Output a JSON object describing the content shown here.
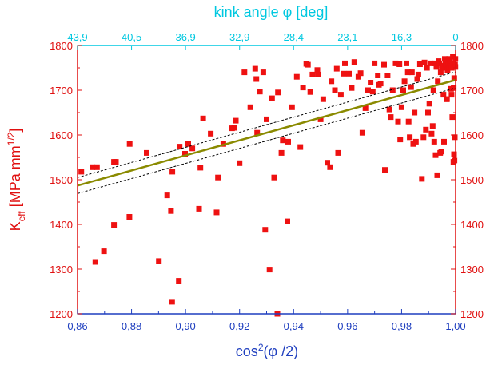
{
  "chart_data": {
    "type": "scatter",
    "title": "",
    "xlabel": {
      "base": "cos",
      "sup": "2",
      "rest": "(φ /2)"
    },
    "ylabel": {
      "base": "K",
      "sub": "eff",
      "mid": " [MPa mm",
      "sup": "1/2",
      "end": "]"
    },
    "top_axis_label": "kink angle φ [deg]",
    "xlim": [
      0.86,
      1.0
    ],
    "ylim": [
      1200,
      1800
    ],
    "x_ticks": [
      "0,86",
      "0,88",
      "0,90",
      "0,92",
      "0,94",
      "0,96",
      "0,98",
      "1,00"
    ],
    "y_ticks": [
      "1200",
      "1300",
      "1400",
      "1500",
      "1600",
      "1700",
      "1800"
    ],
    "top_ticks": [
      {
        "label": "43,9",
        "x": 0.86
      },
      {
        "label": "40,5",
        "x": 0.88
      },
      {
        "label": "36,9",
        "x": 0.9
      },
      {
        "label": "32,9",
        "x": 0.92
      },
      {
        "label": "28,4",
        "x": 0.94
      },
      {
        "label": "23,1",
        "x": 0.96
      },
      {
        "label": "16,3",
        "x": 0.98
      },
      {
        "label": "0",
        "x": 1.0
      }
    ],
    "fit": {
      "x": [
        0.86,
        1.0
      ],
      "y": [
        1487,
        1723
      ]
    },
    "fit_band_offset": 18,
    "grid": false,
    "colors": {
      "points": "#ee1111",
      "fit": "#8a8a00",
      "band": "#000000",
      "frame": "#000000",
      "x_axis": "#1f3fbf",
      "top_axis": "#00c8e0",
      "y_axis": "#e01010"
    },
    "points": [
      [
        0.8614,
        1518
      ],
      [
        0.8655,
        1528
      ],
      [
        0.8672,
        1528
      ],
      [
        0.8735,
        1540
      ],
      [
        0.8742,
        1540
      ],
      [
        0.8793,
        1580
      ],
      [
        0.8792,
        1417
      ],
      [
        0.8735,
        1399
      ],
      [
        0.8698,
        1340
      ],
      [
        0.8666,
        1316
      ],
      [
        0.8856,
        1560
      ],
      [
        0.8901,
        1318
      ],
      [
        0.8932,
        1465
      ],
      [
        0.8946,
        1430
      ],
      [
        0.8951,
        1518
      ],
      [
        0.895,
        1227
      ],
      [
        0.8975,
        1274
      ],
      [
        0.8978,
        1574
      ],
      [
        0.8998,
        1558
      ],
      [
        0.901,
        1580
      ],
      [
        0.9025,
        1570
      ],
      [
        0.905,
        1435
      ],
      [
        0.9055,
        1527
      ],
      [
        0.9065,
        1637
      ],
      [
        0.9093,
        1603
      ],
      [
        0.9115,
        1427
      ],
      [
        0.912,
        1505
      ],
      [
        0.914,
        1580
      ],
      [
        0.9172,
        1615
      ],
      [
        0.918,
        1616
      ],
      [
        0.9186,
        1632
      ],
      [
        0.92,
        1537
      ],
      [
        0.9218,
        1740
      ],
      [
        0.924,
        1662
      ],
      [
        0.9258,
        1748
      ],
      [
        0.9262,
        1725
      ],
      [
        0.9265,
        1605
      ],
      [
        0.9275,
        1697
      ],
      [
        0.9288,
        1740
      ],
      [
        0.9295,
        1388
      ],
      [
        0.93,
        1635
      ],
      [
        0.9311,
        1299
      ],
      [
        0.932,
        1682
      ],
      [
        0.9328,
        1505
      ],
      [
        0.934,
        1200
      ],
      [
        0.9342,
        1695
      ],
      [
        0.9355,
        1560
      ],
      [
        0.936,
        1588
      ],
      [
        0.9377,
        1407
      ],
      [
        0.938,
        1585
      ],
      [
        0.9394,
        1662
      ],
      [
        0.9412,
        1730
      ],
      [
        0.9425,
        1573
      ],
      [
        0.9435,
        1706
      ],
      [
        0.9447,
        1759
      ],
      [
        0.9453,
        1757
      ],
      [
        0.9462,
        1696
      ],
      [
        0.947,
        1735
      ],
      [
        0.9488,
        1745
      ],
      [
        0.949,
        1735
      ],
      [
        0.95,
        1635
      ],
      [
        0.951,
        1680
      ],
      [
        0.9525,
        1538
      ],
      [
        0.9535,
        1528
      ],
      [
        0.954,
        1720
      ],
      [
        0.9553,
        1700
      ],
      [
        0.956,
        1748
      ],
      [
        0.9565,
        1560
      ],
      [
        0.9575,
        1690
      ],
      [
        0.9585,
        1737
      ],
      [
        0.959,
        1760
      ],
      [
        0.9605,
        1737
      ],
      [
        0.9615,
        1705
      ],
      [
        0.9625,
        1763
      ],
      [
        0.964,
        1730
      ],
      [
        0.9648,
        1738
      ],
      [
        0.9655,
        1605
      ],
      [
        0.9666,
        1660
      ],
      [
        0.9676,
        1700
      ],
      [
        0.9685,
        1717
      ],
      [
        0.9693,
        1697
      ],
      [
        0.97,
        1760
      ],
      [
        0.9712,
        1733
      ],
      [
        0.9716,
        1712
      ],
      [
        0.9722,
        1715
      ],
      [
        0.9735,
        1757
      ],
      [
        0.9738,
        1522
      ],
      [
        0.9748,
        1733
      ],
      [
        0.9755,
        1657
      ],
      [
        0.976,
        1640
      ],
      [
        0.9767,
        1700
      ],
      [
        0.9778,
        1760
      ],
      [
        0.9787,
        1630
      ],
      [
        0.9792,
        1758
      ],
      [
        0.9795,
        1590
      ],
      [
        0.98,
        1662
      ],
      [
        0.9806,
        1700
      ],
      [
        0.9811,
        1720
      ],
      [
        0.9818,
        1760
      ],
      [
        0.9823,
        1740
      ],
      [
        0.9826,
        1630
      ],
      [
        0.983,
        1595
      ],
      [
        0.9835,
        1707
      ],
      [
        0.9838,
        1740
      ],
      [
        0.9843,
        1580
      ],
      [
        0.9848,
        1650
      ],
      [
        0.9853,
        1585
      ],
      [
        0.9858,
        1725
      ],
      [
        0.9862,
        1735
      ],
      [
        0.9868,
        1758
      ],
      [
        0.9875,
        1502
      ],
      [
        0.9881,
        1595
      ],
      [
        0.9885,
        1762
      ],
      [
        0.989,
        1612
      ],
      [
        0.9894,
        1750
      ],
      [
        0.9898,
        1650
      ],
      [
        0.9903,
        1670
      ],
      [
        0.9908,
        1760
      ],
      [
        0.9911,
        1603
      ],
      [
        0.9915,
        1620
      ],
      [
        0.9918,
        1700
      ],
      [
        0.9921,
        1585
      ],
      [
        0.9923,
        1760
      ],
      [
        0.9926,
        1555
      ],
      [
        0.9929,
        1752
      ],
      [
        0.9932,
        1510
      ],
      [
        0.9934,
        1720
      ],
      [
        0.9937,
        1765
      ],
      [
        0.994,
        1760
      ],
      [
        0.9943,
        1560
      ],
      [
        0.9945,
        1740
      ],
      [
        0.9947,
        1563
      ],
      [
        0.995,
        1755
      ],
      [
        0.9953,
        1750
      ],
      [
        0.9955,
        1690
      ],
      [
        0.9957,
        1585
      ],
      [
        0.996,
        1770
      ],
      [
        0.9963,
        1765
      ],
      [
        0.9965,
        1757
      ],
      [
        0.9966,
        1680
      ],
      [
        0.9968,
        1680
      ],
      [
        0.997,
        1745
      ],
      [
        0.9972,
        1765
      ],
      [
        0.9973,
        1757
      ],
      [
        0.9975,
        1750
      ],
      [
        0.9976,
        1770
      ],
      [
        0.9978,
        1760
      ],
      [
        0.998,
        1760
      ],
      [
        0.9982,
        1753
      ],
      [
        0.9983,
        1703
      ],
      [
        0.9985,
        1690
      ],
      [
        0.9986,
        1750
      ],
      [
        0.9988,
        1640
      ],
      [
        0.999,
        1775
      ],
      [
        0.9991,
        1760
      ],
      [
        0.9993,
        1705
      ],
      [
        0.9994,
        1557
      ],
      [
        0.9995,
        1727
      ],
      [
        0.9996,
        1543
      ],
      [
        0.9997,
        1595
      ],
      [
        0.9998,
        1757
      ],
      [
        0.9999,
        1770
      ],
      [
        0.9999,
        1752
      ],
      [
        0.9992,
        1540
      ]
    ]
  }
}
